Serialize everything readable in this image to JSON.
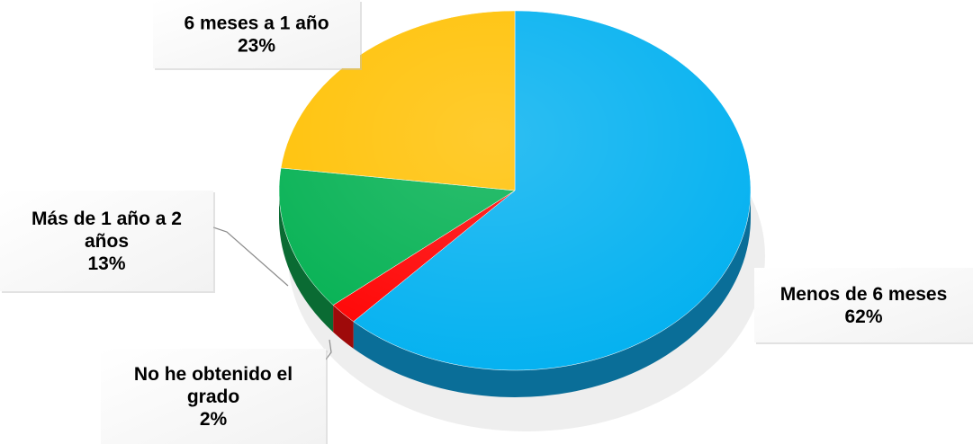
{
  "chart_data": {
    "type": "pie",
    "title": "",
    "series": [
      {
        "name": "Menos de 6 meses",
        "label_lines": [
          "Menos de 6 meses"
        ],
        "value": 62,
        "value_label": "62%",
        "color": "#00B0F0",
        "side_color": "#0A6E98"
      },
      {
        "name": "No he obtenido el grado",
        "label_lines": [
          "No he obtenido el",
          "grado"
        ],
        "value": 2,
        "value_label": "2%",
        "color": "#FF0000",
        "side_color": "#9E0A0A"
      },
      {
        "name": "Más de 1 año a 2 años",
        "label_lines": [
          "Más de 1 año a 2",
          "años"
        ],
        "value": 13,
        "value_label": "13%",
        "color": "#00B050",
        "side_color": "#0A6B33"
      },
      {
        "name": "6 meses a 1 año",
        "label_lines": [
          "6 meses a 1 año"
        ],
        "value": 23,
        "value_label": "23%",
        "color": "#FFC000",
        "side_color": "#A67C00"
      }
    ]
  }
}
